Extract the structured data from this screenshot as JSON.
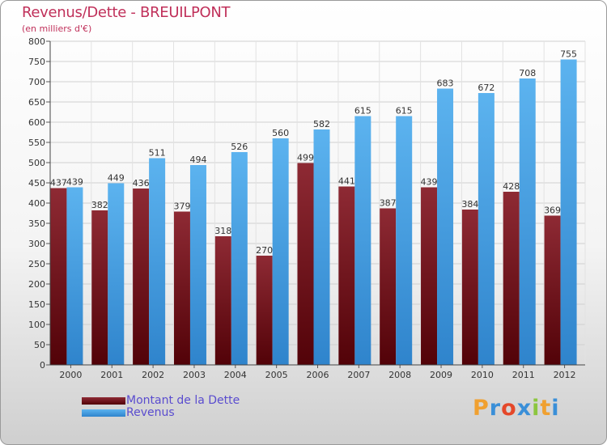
{
  "title": "Revenus/Dette - BREUILPONT",
  "subtitle": "(en milliers d'€)",
  "legend": [
    {
      "label": "Montant de la Dette",
      "color": "#6e1520"
    },
    {
      "label": "Revenus",
      "color": "#4aa3e6"
    }
  ],
  "logo": {
    "letters": [
      "P",
      "r",
      "o",
      "x",
      "i",
      "t",
      "i"
    ],
    "colors": [
      "#f0a030",
      "#3a8fd8",
      "#e5482a",
      "#3a8fd8",
      "#8cc63f",
      "#f0a030",
      "#3a8fd8"
    ]
  },
  "chart_data": {
    "type": "bar",
    "title": "Revenus/Dette - BREUILPONT",
    "ylabel": "(en milliers d'€)",
    "xlabel": "",
    "categories": [
      "2000",
      "2001",
      "2002",
      "2003",
      "2004",
      "2005",
      "2006",
      "2007",
      "2008",
      "2009",
      "2010",
      "2011",
      "2012"
    ],
    "series": [
      {
        "name": "Montant de la Dette",
        "values": [
          437,
          382,
          436,
          379,
          318,
          270,
          499,
          441,
          387,
          439,
          384,
          428,
          369
        ]
      },
      {
        "name": "Revenus",
        "values": [
          439,
          449,
          511,
          494,
          526,
          560,
          582,
          615,
          615,
          683,
          672,
          708,
          755
        ]
      }
    ],
    "ylim": [
      0,
      800
    ],
    "yticks": [
      0,
      50,
      100,
      150,
      200,
      250,
      300,
      350,
      400,
      450,
      500,
      550,
      600,
      650,
      700,
      750,
      800
    ],
    "grid": true,
    "legend_position": "bottom-left"
  }
}
